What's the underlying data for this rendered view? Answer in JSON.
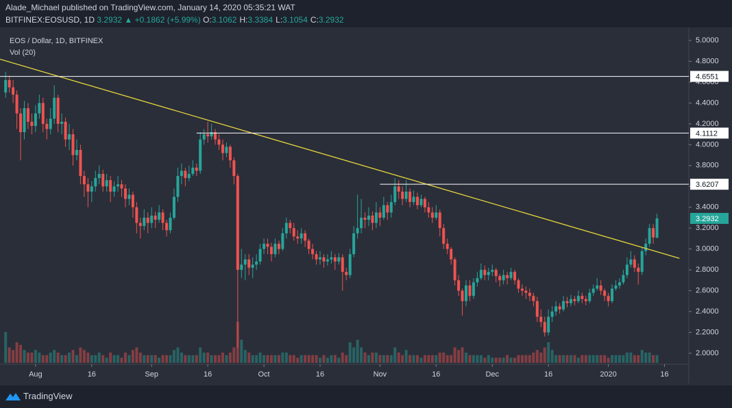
{
  "header": {
    "publisher": "Alade_Michael published on TradingView.com, January 14, 2020 05:35:21 WAT",
    "symbol": "BITFINEX:EOSUSD, 1D",
    "last": "3.2932",
    "arrow": "▲",
    "change": "+0.1862 (+5.99%)",
    "ohlc": [
      {
        "label": "O:",
        "value": "3.1062"
      },
      {
        "label": "H:",
        "value": "3.3384"
      },
      {
        "label": "L:",
        "value": "3.1054"
      },
      {
        "label": "C:",
        "value": "3.2932"
      }
    ]
  },
  "footer": {
    "brand": "TradingView"
  },
  "chart_data": {
    "type": "candlestick",
    "title": "EOS / Dollar, 1D, BITFINEX",
    "volume_label": "Vol (20)",
    "up_color": "#26a69a",
    "down_color": "#ef5350",
    "trend_color": "#e8d83c",
    "level_color": "#ffffff",
    "xlim": [
      -1.5,
      182.5
    ],
    "ylim": [
      1.895,
      5.125
    ],
    "xticks": [
      {
        "value": 8,
        "label": "Aug"
      },
      {
        "value": 23,
        "label": "16"
      },
      {
        "value": 39,
        "label": "Sep"
      },
      {
        "value": 54,
        "label": "16"
      },
      {
        "value": 69,
        "label": "Oct"
      },
      {
        "value": 84,
        "label": "16"
      },
      {
        "value": 100,
        "label": "Nov"
      },
      {
        "value": 115,
        "label": "16"
      },
      {
        "value": 130,
        "label": "Dec"
      },
      {
        "value": 145,
        "label": "16"
      },
      {
        "value": 161,
        "label": "2020"
      },
      {
        "value": 176,
        "label": "16"
      }
    ],
    "yticks": [
      {
        "value": 2.0,
        "label": "2.0000"
      },
      {
        "value": 2.2,
        "label": "2.2000"
      },
      {
        "value": 2.4,
        "label": "2.4000"
      },
      {
        "value": 2.6,
        "label": "2.6000"
      },
      {
        "value": 2.8,
        "label": "2.8000"
      },
      {
        "value": 3.0,
        "label": "3.0000"
      },
      {
        "value": 3.2,
        "label": "3.2000"
      },
      {
        "value": 3.4,
        "label": "3.4000"
      },
      {
        "value": 3.6,
        "label": "3.6000"
      },
      {
        "value": 3.8,
        "label": "3.8000"
      },
      {
        "value": 4.0,
        "label": "4.0000"
      },
      {
        "value": 4.2,
        "label": "4.2000"
      },
      {
        "value": 4.4,
        "label": "4.4000"
      },
      {
        "value": 4.6,
        "label": "4.6000"
      },
      {
        "value": 4.8,
        "label": "4.8000"
      },
      {
        "value": 5.0,
        "label": "5.0000"
      }
    ],
    "levels": [
      {
        "value": 4.6551,
        "from": -1.5
      },
      {
        "value": 4.1112,
        "from": 51
      },
      {
        "value": 3.6207,
        "from": 100
      }
    ],
    "trendline": {
      "x": [
        -1.5,
        180
      ],
      "y": [
        4.82,
        2.91
      ]
    },
    "candles": [
      [
        4.5,
        4.7,
        4.45,
        4.62
      ],
      [
        4.62,
        4.66,
        4.5,
        4.55
      ],
      [
        4.55,
        4.62,
        4.4,
        4.48
      ],
      [
        4.48,
        4.52,
        4.15,
        4.3
      ],
      [
        4.3,
        4.35,
        3.85,
        4.12
      ],
      [
        4.12,
        4.42,
        4.05,
        4.35
      ],
      [
        4.35,
        4.4,
        4.15,
        4.22
      ],
      [
        4.22,
        4.3,
        4.1,
        4.18
      ],
      [
        4.18,
        4.38,
        4.12,
        4.3
      ],
      [
        4.3,
        4.48,
        4.25,
        4.4
      ],
      [
        4.4,
        4.45,
        4.12,
        4.2
      ],
      [
        4.2,
        4.25,
        4.05,
        4.15
      ],
      [
        4.15,
        4.35,
        4.1,
        4.25
      ],
      [
        4.25,
        4.57,
        4.2,
        4.45
      ],
      [
        4.45,
        4.48,
        4.12,
        4.2
      ],
      [
        4.2,
        4.3,
        4.1,
        4.22
      ],
      [
        4.22,
        4.26,
        3.98,
        4.05
      ],
      [
        4.05,
        4.2,
        3.95,
        4.1
      ],
      [
        4.1,
        4.15,
        3.8,
        3.9
      ],
      [
        3.9,
        4.05,
        3.85,
        3.95
      ],
      [
        3.95,
        4.0,
        3.62,
        3.7
      ],
      [
        3.7,
        3.75,
        3.5,
        3.62
      ],
      [
        3.62,
        3.68,
        3.4,
        3.55
      ],
      [
        3.55,
        3.65,
        3.45,
        3.6
      ],
      [
        3.6,
        3.75,
        3.55,
        3.68
      ],
      [
        3.68,
        3.8,
        3.62,
        3.72
      ],
      [
        3.72,
        3.76,
        3.55,
        3.6
      ],
      [
        3.6,
        3.72,
        3.55,
        3.66
      ],
      [
        3.66,
        3.7,
        3.45,
        3.55
      ],
      [
        3.55,
        3.65,
        3.5,
        3.6
      ],
      [
        3.6,
        3.7,
        3.55,
        3.62
      ],
      [
        3.62,
        3.66,
        3.5,
        3.58
      ],
      [
        3.58,
        3.62,
        3.4,
        3.48
      ],
      [
        3.48,
        3.58,
        3.42,
        3.52
      ],
      [
        3.52,
        3.55,
        3.3,
        3.4
      ],
      [
        3.4,
        3.45,
        3.15,
        3.25
      ],
      [
        3.25,
        3.3,
        3.1,
        3.22
      ],
      [
        3.22,
        3.38,
        3.18,
        3.3
      ],
      [
        3.3,
        3.35,
        3.15,
        3.25
      ],
      [
        3.25,
        3.4,
        3.2,
        3.32
      ],
      [
        3.32,
        3.36,
        3.2,
        3.28
      ],
      [
        3.28,
        3.42,
        3.25,
        3.35
      ],
      [
        3.35,
        3.38,
        3.18,
        3.25
      ],
      [
        3.25,
        3.28,
        3.12,
        3.18
      ],
      [
        3.18,
        3.35,
        3.15,
        3.3
      ],
      [
        3.3,
        3.58,
        3.28,
        3.5
      ],
      [
        3.5,
        3.78,
        3.45,
        3.7
      ],
      [
        3.7,
        3.82,
        3.62,
        3.75
      ],
      [
        3.75,
        3.78,
        3.6,
        3.68
      ],
      [
        3.68,
        3.8,
        3.65,
        3.72
      ],
      [
        3.72,
        3.85,
        3.7,
        3.78
      ],
      [
        3.78,
        3.82,
        3.7,
        3.75
      ],
      [
        3.75,
        4.12,
        3.72,
        4.05
      ],
      [
        4.05,
        4.15,
        4.0,
        4.1
      ],
      [
        4.1,
        4.22,
        4.02,
        4.08
      ],
      [
        4.08,
        4.2,
        4.05,
        4.12
      ],
      [
        4.12,
        4.15,
        4.0,
        4.05
      ],
      [
        4.05,
        4.1,
        3.95,
        4.0
      ],
      [
        4.0,
        4.05,
        3.85,
        3.92
      ],
      [
        3.92,
        4.02,
        3.88,
        3.98
      ],
      [
        3.98,
        4.0,
        3.78,
        3.85
      ],
      [
        3.85,
        3.88,
        3.62,
        3.7
      ],
      [
        3.7,
        3.72,
        2.05,
        2.8
      ],
      [
        2.8,
        3.0,
        2.72,
        2.85
      ],
      [
        2.85,
        2.95,
        2.7,
        2.9
      ],
      [
        2.9,
        2.95,
        2.75,
        2.82
      ],
      [
        2.82,
        2.92,
        2.72,
        2.85
      ],
      [
        2.85,
        2.95,
        2.8,
        2.88
      ],
      [
        2.88,
        3.05,
        2.85,
        3.0
      ],
      [
        3.0,
        3.1,
        2.95,
        3.05
      ],
      [
        3.05,
        3.1,
        2.95,
        3.02
      ],
      [
        3.02,
        3.06,
        2.88,
        2.95
      ],
      [
        2.95,
        3.1,
        2.92,
        3.05
      ],
      [
        3.05,
        3.08,
        2.95,
        3.0
      ],
      [
        3.0,
        3.2,
        2.98,
        3.15
      ],
      [
        3.15,
        3.3,
        3.1,
        3.25
      ],
      [
        3.25,
        3.28,
        3.15,
        3.2
      ],
      [
        3.2,
        3.25,
        3.08,
        3.12
      ],
      [
        3.12,
        3.18,
        3.05,
        3.1
      ],
      [
        3.1,
        3.2,
        3.05,
        3.15
      ],
      [
        3.15,
        3.18,
        3.02,
        3.08
      ],
      [
        3.08,
        3.1,
        2.95,
        3.0
      ],
      [
        3.0,
        3.05,
        2.9,
        2.95
      ],
      [
        2.95,
        2.98,
        2.85,
        2.9
      ],
      [
        2.9,
        2.98,
        2.85,
        2.92
      ],
      [
        2.92,
        2.95,
        2.82,
        2.88
      ],
      [
        2.88,
        2.95,
        2.84,
        2.9
      ],
      [
        2.9,
        2.98,
        2.86,
        2.92
      ],
      [
        2.92,
        2.95,
        2.8,
        2.88
      ],
      [
        2.88,
        2.96,
        2.85,
        2.92
      ],
      [
        2.92,
        2.95,
        2.6,
        2.78
      ],
      [
        2.78,
        2.82,
        2.7,
        2.75
      ],
      [
        2.75,
        3.0,
        2.72,
        2.95
      ],
      [
        2.95,
        3.22,
        2.92,
        3.15
      ],
      [
        3.15,
        3.52,
        3.1,
        3.2
      ],
      [
        3.2,
        3.48,
        3.15,
        3.3
      ],
      [
        3.3,
        3.35,
        3.2,
        3.28
      ],
      [
        3.28,
        3.4,
        3.22,
        3.32
      ],
      [
        3.32,
        3.36,
        3.18,
        3.25
      ],
      [
        3.25,
        3.45,
        3.2,
        3.35
      ],
      [
        3.35,
        3.4,
        3.22,
        3.3
      ],
      [
        3.3,
        3.5,
        3.28,
        3.42
      ],
      [
        3.42,
        3.45,
        3.28,
        3.35
      ],
      [
        3.35,
        3.52,
        3.3,
        3.45
      ],
      [
        3.45,
        3.68,
        3.42,
        3.6
      ],
      [
        3.6,
        3.66,
        3.48,
        3.55
      ],
      [
        3.55,
        3.6,
        3.42,
        3.48
      ],
      [
        3.48,
        3.66,
        3.45,
        3.55
      ],
      [
        3.55,
        3.58,
        3.4,
        3.45
      ],
      [
        3.45,
        3.56,
        3.42,
        3.5
      ],
      [
        3.5,
        3.54,
        3.38,
        3.42
      ],
      [
        3.42,
        3.52,
        3.4,
        3.48
      ],
      [
        3.48,
        3.5,
        3.35,
        3.4
      ],
      [
        3.4,
        3.45,
        3.3,
        3.35
      ],
      [
        3.35,
        3.4,
        3.25,
        3.3
      ],
      [
        3.3,
        3.42,
        3.28,
        3.35
      ],
      [
        3.35,
        3.38,
        3.12,
        3.2
      ],
      [
        3.2,
        3.24,
        3.0,
        3.05
      ],
      [
        3.05,
        3.1,
        2.95,
        3.0
      ],
      [
        3.0,
        3.02,
        2.85,
        2.9
      ],
      [
        2.9,
        2.92,
        2.65,
        2.7
      ],
      [
        2.7,
        2.75,
        2.55,
        2.6
      ],
      [
        2.6,
        2.62,
        2.36,
        2.5
      ],
      [
        2.5,
        2.7,
        2.45,
        2.65
      ],
      [
        2.65,
        2.7,
        2.5,
        2.55
      ],
      [
        2.55,
        2.72,
        2.52,
        2.68
      ],
      [
        2.68,
        2.78,
        2.64,
        2.72
      ],
      [
        2.72,
        2.86,
        2.7,
        2.8
      ],
      [
        2.8,
        2.84,
        2.7,
        2.75
      ],
      [
        2.75,
        2.82,
        2.7,
        2.78
      ],
      [
        2.78,
        2.85,
        2.74,
        2.8
      ],
      [
        2.8,
        2.82,
        2.68,
        2.74
      ],
      [
        2.74,
        2.76,
        2.64,
        2.7
      ],
      [
        2.7,
        2.8,
        2.66,
        2.75
      ],
      [
        2.75,
        2.78,
        2.66,
        2.72
      ],
      [
        2.72,
        2.82,
        2.7,
        2.78
      ],
      [
        2.78,
        2.8,
        2.66,
        2.7
      ],
      [
        2.7,
        2.72,
        2.58,
        2.62
      ],
      [
        2.62,
        2.66,
        2.55,
        2.6
      ],
      [
        2.6,
        2.64,
        2.52,
        2.58
      ],
      [
        2.58,
        2.62,
        2.5,
        2.55
      ],
      [
        2.55,
        2.58,
        2.45,
        2.5
      ],
      [
        2.5,
        2.54,
        2.3,
        2.35
      ],
      [
        2.35,
        2.42,
        2.25,
        2.3
      ],
      [
        2.3,
        2.35,
        2.16,
        2.2
      ],
      [
        2.2,
        2.42,
        2.17,
        2.35
      ],
      [
        2.35,
        2.45,
        2.3,
        2.4
      ],
      [
        2.4,
        2.5,
        2.36,
        2.45
      ],
      [
        2.45,
        2.48,
        2.38,
        2.42
      ],
      [
        2.42,
        2.55,
        2.4,
        2.5
      ],
      [
        2.5,
        2.54,
        2.44,
        2.48
      ],
      [
        2.48,
        2.56,
        2.45,
        2.52
      ],
      [
        2.52,
        2.55,
        2.46,
        2.5
      ],
      [
        2.5,
        2.6,
        2.48,
        2.55
      ],
      [
        2.55,
        2.58,
        2.48,
        2.52
      ],
      [
        2.52,
        2.55,
        2.46,
        2.5
      ],
      [
        2.5,
        2.62,
        2.48,
        2.58
      ],
      [
        2.58,
        2.66,
        2.55,
        2.62
      ],
      [
        2.62,
        2.72,
        2.6,
        2.65
      ],
      [
        2.65,
        2.7,
        2.56,
        2.6
      ],
      [
        2.6,
        2.62,
        2.5,
        2.55
      ],
      [
        2.55,
        2.58,
        2.45,
        2.5
      ],
      [
        2.5,
        2.66,
        2.48,
        2.62
      ],
      [
        2.62,
        2.7,
        2.6,
        2.65
      ],
      [
        2.65,
        2.72,
        2.62,
        2.68
      ],
      [
        2.68,
        2.8,
        2.66,
        2.75
      ],
      [
        2.75,
        2.92,
        2.72,
        2.85
      ],
      [
        2.85,
        2.98,
        2.82,
        2.9
      ],
      [
        2.9,
        2.94,
        2.78,
        2.82
      ],
      [
        2.82,
        2.86,
        2.66,
        2.78
      ],
      [
        2.78,
        3.02,
        2.75,
        2.98
      ],
      [
        2.98,
        3.1,
        2.94,
        3.05
      ],
      [
        3.05,
        3.24,
        3.02,
        3.2
      ],
      [
        3.2,
        3.24,
        3.05,
        3.11
      ],
      [
        3.1062,
        3.3384,
        3.1054,
        3.2932
      ]
    ],
    "volume": [
      12,
      6,
      5,
      8,
      7,
      5,
      4,
      4,
      5,
      4,
      3,
      3,
      4,
      5,
      4,
      3,
      3,
      4,
      5,
      3,
      6,
      5,
      4,
      3,
      3,
      4,
      3,
      2,
      4,
      3,
      3,
      2,
      4,
      3,
      5,
      6,
      4,
      3,
      3,
      3,
      3,
      2,
      3,
      3,
      3,
      5,
      6,
      4,
      3,
      3,
      3,
      3,
      6,
      4,
      4,
      3,
      3,
      3,
      4,
      3,
      4,
      6,
      16,
      9,
      5,
      4,
      3,
      3,
      4,
      3,
      3,
      3,
      3,
      3,
      4,
      4,
      3,
      3,
      2,
      3,
      3,
      3,
      3,
      3,
      2,
      3,
      2,
      3,
      3,
      2,
      4,
      3,
      8,
      6,
      9,
      6,
      4,
      3,
      4,
      4,
      3,
      3,
      3,
      3,
      6,
      4,
      3,
      5,
      3,
      3,
      3,
      2,
      3,
      3,
      3,
      3,
      4,
      4,
      3,
      3,
      6,
      5,
      6,
      4,
      3,
      3,
      3,
      3,
      2,
      3,
      2,
      2,
      2,
      2,
      3,
      2,
      2,
      3,
      3,
      3,
      3,
      4,
      5,
      4,
      6,
      8,
      5,
      3,
      3,
      3,
      3,
      3,
      3,
      2,
      3,
      3,
      3,
      3,
      3,
      3,
      3,
      2,
      3,
      3,
      3,
      3,
      4,
      4,
      3,
      3,
      5,
      4,
      4,
      3,
      3
    ]
  }
}
